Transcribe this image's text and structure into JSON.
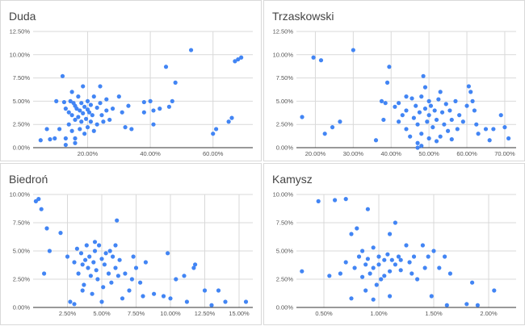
{
  "chart_data": [
    {
      "type": "scatter",
      "title": "Duda",
      "xlabel": "",
      "ylabel": "",
      "x_ticks": [
        0.2,
        0.4,
        0.6
      ],
      "x_tick_labels": [
        "20.00%",
        "40.00%",
        "60.00%"
      ],
      "y_ticks": [
        0,
        0.025,
        0.05,
        0.075,
        0.1,
        0.125
      ],
      "y_tick_labels": [
        "0.00%",
        "2.50%",
        "5.00%",
        "7.50%",
        "10.00%",
        "12.50%"
      ],
      "xlim": [
        0.026,
        0.727
      ],
      "ylim": [
        0,
        0.125
      ],
      "color": "#4285f4",
      "points": [
        [
          0.07,
          0.02
        ],
        [
          0.095,
          0.01
        ],
        [
          0.11,
          0.02
        ],
        [
          0.12,
          0.077
        ],
        [
          0.125,
          0.049
        ],
        [
          0.13,
          0.042
        ],
        [
          0.13,
          0.01
        ],
        [
          0.14,
          0.038
        ],
        [
          0.14,
          0.025
        ],
        [
          0.145,
          0.05
        ],
        [
          0.15,
          0.035
        ],
        [
          0.15,
          0.018
        ],
        [
          0.155,
          0.048
        ],
        [
          0.16,
          0.045
        ],
        [
          0.16,
          0.03
        ],
        [
          0.16,
          0.01
        ],
        [
          0.165,
          0.042
        ],
        [
          0.17,
          0.055
        ],
        [
          0.17,
          0.033
        ],
        [
          0.175,
          0.04
        ],
        [
          0.175,
          0.02
        ],
        [
          0.18,
          0.048
        ],
        [
          0.18,
          0.028
        ],
        [
          0.185,
          0.066
        ],
        [
          0.185,
          0.037
        ],
        [
          0.19,
          0.044
        ],
        [
          0.19,
          0.015
        ],
        [
          0.195,
          0.031
        ],
        [
          0.2,
          0.05
        ],
        [
          0.2,
          0.041
        ],
        [
          0.2,
          0.022
        ],
        [
          0.205,
          0.038
        ],
        [
          0.21,
          0.046
        ],
        [
          0.21,
          0.028
        ],
        [
          0.215,
          0.035
        ],
        [
          0.22,
          0.055
        ],
        [
          0.22,
          0.018
        ],
        [
          0.23,
          0.043
        ],
        [
          0.23,
          0.025
        ],
        [
          0.24,
          0.048
        ],
        [
          0.24,
          0.066
        ],
        [
          0.245,
          0.035
        ],
        [
          0.25,
          0.028
        ],
        [
          0.26,
          0.052
        ],
        [
          0.27,
          0.03
        ],
        [
          0.28,
          0.042
        ],
        [
          0.3,
          0.055
        ],
        [
          0.31,
          0.038
        ],
        [
          0.32,
          0.022
        ],
        [
          0.33,
          0.045
        ],
        [
          0.34,
          0.02
        ],
        [
          0.38,
          0.049
        ],
        [
          0.38,
          0.038
        ],
        [
          0.4,
          0.05
        ],
        [
          0.41,
          0.025
        ],
        [
          0.41,
          0.04
        ],
        [
          0.43,
          0.042
        ],
        [
          0.45,
          0.087
        ],
        [
          0.46,
          0.044
        ],
        [
          0.47,
          0.05
        ],
        [
          0.48,
          0.07
        ],
        [
          0.53,
          0.105
        ],
        [
          0.6,
          0.015
        ],
        [
          0.61,
          0.02
        ],
        [
          0.65,
          0.028
        ],
        [
          0.66,
          0.032
        ],
        [
          0.67,
          0.093
        ],
        [
          0.68,
          0.095
        ],
        [
          0.69,
          0.097
        ],
        [
          0.1,
          0.05
        ],
        [
          0.05,
          0.008
        ],
        [
          0.08,
          0.009
        ],
        [
          0.26,
          0.04
        ],
        [
          0.15,
          0.06
        ],
        [
          0.13,
          0.003
        ],
        [
          0.16,
          0.005
        ]
      ]
    },
    {
      "type": "scatter",
      "title": "Trzaskowski",
      "xlabel": "",
      "ylabel": "",
      "x_ticks": [
        0.2,
        0.3,
        0.4,
        0.5,
        0.6,
        0.7
      ],
      "x_tick_labels": [
        "20.00%",
        "30.00%",
        "40.00%",
        "50.00%",
        "60.00%",
        "70.00%"
      ],
      "y_ticks": [
        0,
        0.025,
        0.05,
        0.075,
        0.1,
        0.125
      ],
      "y_tick_labels": [
        "0.00%",
        "2.50%",
        "5.00%",
        "7.50%",
        "10.00%",
        "12.50%"
      ],
      "xlim": [
        0.15,
        0.73
      ],
      "ylim": [
        0,
        0.125
      ],
      "color": "#4285f4",
      "points": [
        [
          0.165,
          0.033
        ],
        [
          0.195,
          0.097
        ],
        [
          0.215,
          0.094
        ],
        [
          0.225,
          0.015
        ],
        [
          0.245,
          0.022
        ],
        [
          0.265,
          0.028
        ],
        [
          0.3,
          0.105
        ],
        [
          0.36,
          0.008
        ],
        [
          0.375,
          0.05
        ],
        [
          0.38,
          0.03
        ],
        [
          0.385,
          0.048
        ],
        [
          0.39,
          0.07
        ],
        [
          0.395,
          0.087
        ],
        [
          0.41,
          0.044
        ],
        [
          0.42,
          0.028
        ],
        [
          0.42,
          0.048
        ],
        [
          0.43,
          0.035
        ],
        [
          0.44,
          0.02
        ],
        [
          0.44,
          0.04
        ],
        [
          0.45,
          0.012
        ],
        [
          0.455,
          0.053
        ],
        [
          0.46,
          0.032
        ],
        [
          0.465,
          0.045
        ],
        [
          0.47,
          0.025
        ],
        [
          0.47,
          0.005
        ],
        [
          0.475,
          0.038
        ],
        [
          0.48,
          0.055
        ],
        [
          0.48,
          0.015
        ],
        [
          0.485,
          0.077
        ],
        [
          0.49,
          0.065
        ],
        [
          0.49,
          0.042
        ],
        [
          0.495,
          0.028
        ],
        [
          0.5,
          0.05
        ],
        [
          0.5,
          0.035
        ],
        [
          0.5,
          0.01
        ],
        [
          0.505,
          0.045
        ],
        [
          0.51,
          0.022
        ],
        [
          0.515,
          0.04
        ],
        [
          0.52,
          0.03
        ],
        [
          0.525,
          0.052
        ],
        [
          0.53,
          0.012
        ],
        [
          0.535,
          0.038
        ],
        [
          0.54,
          0.025
        ],
        [
          0.545,
          0.047
        ],
        [
          0.55,
          0.018
        ],
        [
          0.555,
          0.04
        ],
        [
          0.56,
          0.03
        ],
        [
          0.57,
          0.05
        ],
        [
          0.575,
          0.02
        ],
        [
          0.58,
          0.035
        ],
        [
          0.59,
          0.028
        ],
        [
          0.6,
          0.045
        ],
        [
          0.605,
          0.066
        ],
        [
          0.61,
          0.06
        ],
        [
          0.615,
          0.05
        ],
        [
          0.62,
          0.04
        ],
        [
          0.625,
          0.025
        ],
        [
          0.63,
          0.015
        ],
        [
          0.65,
          0.02
        ],
        [
          0.66,
          0.008
        ],
        [
          0.67,
          0.02
        ],
        [
          0.69,
          0.035
        ],
        [
          0.7,
          0.022
        ],
        [
          0.71,
          0.01
        ],
        [
          0.47,
          0.0
        ],
        [
          0.48,
          0.002
        ],
        [
          0.52,
          0.007
        ],
        [
          0.56,
          0.009
        ],
        [
          0.44,
          0.055
        ],
        [
          0.53,
          0.06
        ]
      ]
    },
    {
      "type": "scatter",
      "title": "Biedroń",
      "xlabel": "",
      "ylabel": "",
      "x_ticks": [
        0.025,
        0.05,
        0.075,
        0.1,
        0.125,
        0.15
      ],
      "x_tick_labels": [
        "2.50%",
        "5.00%",
        "7.50%",
        "10.00%",
        "12.50%",
        "15.00%"
      ],
      "y_ticks": [
        0,
        0.025,
        0.05,
        0.075,
        0.1
      ],
      "y_tick_labels": [
        "0.00%",
        "2.50%",
        "5.00%",
        "7.50%",
        "10.00%"
      ],
      "xlim": [
        0.0,
        0.16
      ],
      "ylim": [
        0,
        0.1
      ],
      "color": "#4285f4",
      "points": [
        [
          0.002,
          0.094
        ],
        [
          0.004,
          0.096
        ],
        [
          0.006,
          0.087
        ],
        [
          0.008,
          0.03
        ],
        [
          0.01,
          0.07
        ],
        [
          0.012,
          0.05
        ],
        [
          0.02,
          0.066
        ],
        [
          0.025,
          0.045
        ],
        [
          0.027,
          0.005
        ],
        [
          0.03,
          0.04
        ],
        [
          0.032,
          0.052
        ],
        [
          0.033,
          0.03
        ],
        [
          0.035,
          0.048
        ],
        [
          0.036,
          0.038
        ],
        [
          0.037,
          0.02
        ],
        [
          0.038,
          0.042
        ],
        [
          0.039,
          0.055
        ],
        [
          0.04,
          0.035
        ],
        [
          0.041,
          0.045
        ],
        [
          0.042,
          0.028
        ],
        [
          0.043,
          0.012
        ],
        [
          0.044,
          0.04
        ],
        [
          0.045,
          0.05
        ],
        [
          0.046,
          0.033
        ],
        [
          0.047,
          0.025
        ],
        [
          0.048,
          0.055
        ],
        [
          0.05,
          0.043
        ],
        [
          0.051,
          0.018
        ],
        [
          0.052,
          0.038
        ],
        [
          0.053,
          0.048
        ],
        [
          0.055,
          0.03
        ],
        [
          0.056,
          0.05
        ],
        [
          0.057,
          0.022
        ],
        [
          0.058,
          0.045
        ],
        [
          0.06,
          0.035
        ],
        [
          0.061,
          0.077
        ],
        [
          0.062,
          0.028
        ],
        [
          0.063,
          0.042
        ],
        [
          0.065,
          0.008
        ],
        [
          0.067,
          0.03
        ],
        [
          0.07,
          0.015
        ],
        [
          0.072,
          0.025
        ],
        [
          0.073,
          0.045
        ],
        [
          0.075,
          0.035
        ],
        [
          0.078,
          0.022
        ],
        [
          0.08,
          0.01
        ],
        [
          0.082,
          0.04
        ],
        [
          0.088,
          0.012
        ],
        [
          0.095,
          0.01
        ],
        [
          0.098,
          0.048
        ],
        [
          0.1,
          0.008
        ],
        [
          0.104,
          0.025
        ],
        [
          0.11,
          0.028
        ],
        [
          0.112,
          0.005
        ],
        [
          0.117,
          0.035
        ],
        [
          0.118,
          0.038
        ],
        [
          0.125,
          0.015
        ],
        [
          0.13,
          0.002
        ],
        [
          0.135,
          0.015
        ],
        [
          0.14,
          0.005
        ],
        [
          0.155,
          0.005
        ],
        [
          0.03,
          0.003
        ],
        [
          0.045,
          0.058
        ],
        [
          0.06,
          0.055
        ],
        [
          0.036,
          0.015
        ],
        [
          0.05,
          0.005
        ]
      ]
    },
    {
      "type": "scatter",
      "title": "Kamysz",
      "xlabel": "",
      "ylabel": "",
      "x_ticks": [
        0.005,
        0.01,
        0.015,
        0.02
      ],
      "x_tick_labels": [
        "0.50%",
        "1.00%",
        "1.50%",
        "2.00%"
      ],
      "y_ticks": [
        0,
        0.025,
        0.05,
        0.075,
        0.1
      ],
      "y_tick_labels": [
        "0.00%",
        "2.50%",
        "5.00%",
        "7.50%",
        "10.00%"
      ],
      "xlim": [
        0.0025,
        0.0225
      ],
      "ylim": [
        0,
        0.1
      ],
      "color": "#4285f4",
      "points": [
        [
          0.003,
          0.032
        ],
        [
          0.0045,
          0.094
        ],
        [
          0.0055,
          0.028
        ],
        [
          0.006,
          0.095
        ],
        [
          0.0065,
          0.03
        ],
        [
          0.007,
          0.096
        ],
        [
          0.007,
          0.04
        ],
        [
          0.0075,
          0.065
        ],
        [
          0.0078,
          0.035
        ],
        [
          0.008,
          0.07
        ],
        [
          0.0082,
          0.045
        ],
        [
          0.0085,
          0.05
        ],
        [
          0.0085,
          0.027
        ],
        [
          0.0088,
          0.038
        ],
        [
          0.009,
          0.087
        ],
        [
          0.009,
          0.043
        ],
        [
          0.0092,
          0.03
        ],
        [
          0.0095,
          0.053
        ],
        [
          0.0095,
          0.035
        ],
        [
          0.0098,
          0.02
        ],
        [
          0.01,
          0.045
        ],
        [
          0.01,
          0.038
        ],
        [
          0.0102,
          0.025
        ],
        [
          0.0105,
          0.042
        ],
        [
          0.0105,
          0.028
        ],
        [
          0.0108,
          0.047
        ],
        [
          0.011,
          0.065
        ],
        [
          0.011,
          0.032
        ],
        [
          0.0112,
          0.042
        ],
        [
          0.0115,
          0.075
        ],
        [
          0.0115,
          0.038
        ],
        [
          0.0118,
          0.045
        ],
        [
          0.012,
          0.033
        ],
        [
          0.012,
          0.042
        ],
        [
          0.0125,
          0.055
        ],
        [
          0.0128,
          0.04
        ],
        [
          0.013,
          0.03
        ],
        [
          0.0132,
          0.045
        ],
        [
          0.0135,
          0.025
        ],
        [
          0.014,
          0.055
        ],
        [
          0.0142,
          0.035
        ],
        [
          0.0145,
          0.045
        ],
        [
          0.0148,
          0.01
        ],
        [
          0.015,
          0.05
        ],
        [
          0.0155,
          0.035
        ],
        [
          0.016,
          0.045
        ],
        [
          0.0162,
          0.002
        ],
        [
          0.0165,
          0.03
        ],
        [
          0.018,
          0.003
        ],
        [
          0.0185,
          0.022
        ],
        [
          0.019,
          0.002
        ],
        [
          0.0205,
          0.015
        ],
        [
          0.0095,
          0.007
        ],
        [
          0.011,
          0.01
        ],
        [
          0.0075,
          0.008
        ],
        [
          0.0088,
          0.015
        ]
      ]
    }
  ]
}
